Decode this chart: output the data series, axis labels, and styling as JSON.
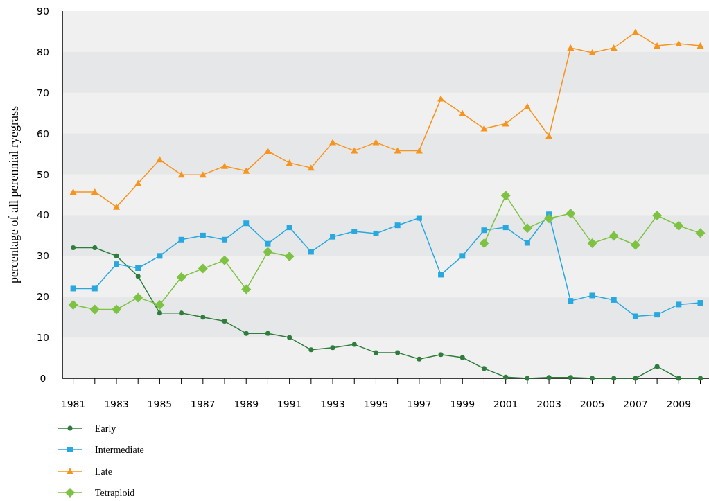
{
  "chart_data": {
    "type": "line",
    "ylabel": "percentage of all perennial ryegrass",
    "x": [
      1981,
      1982,
      1983,
      1984,
      1985,
      1986,
      1987,
      1988,
      1989,
      1990,
      1991,
      1992,
      1993,
      1994,
      1995,
      1996,
      1997,
      1998,
      1999,
      2000,
      2001,
      2002,
      2003,
      2004,
      2005,
      2006,
      2007,
      2008,
      2009,
      2010
    ],
    "series": [
      {
        "name": "Early",
        "color": "#2e7d3c",
        "marker": "circle",
        "values": [
          32,
          32,
          30,
          25,
          16,
          16,
          15,
          14,
          11,
          11,
          10,
          7,
          7.5,
          8.3,
          6.3,
          6.3,
          4.7,
          5.8,
          5.1,
          2.4,
          0.3,
          0,
          0.2,
          0.2,
          0,
          0,
          0,
          2.9,
          0,
          0
        ]
      },
      {
        "name": "Intermediate",
        "color": "#29a8e0",
        "marker": "square",
        "values": [
          22,
          22,
          28,
          27,
          30,
          34,
          35,
          34,
          38,
          33,
          37,
          31,
          34.7,
          36,
          35.5,
          37.5,
          39.3,
          25.4,
          30,
          36.3,
          37,
          33.2,
          40.2,
          19,
          20.3,
          19.2,
          15.2,
          15.6,
          18.1,
          18.5
        ]
      },
      {
        "name": "Late",
        "color": "#f7941d",
        "marker": "triangle",
        "values": [
          45.7,
          45.7,
          42,
          47.8,
          53.6,
          49.9,
          49.9,
          52,
          50.8,
          55.7,
          52.8,
          51.6,
          57.8,
          55.8,
          57.8,
          55.8,
          55.8,
          68.5,
          64.9,
          61.2,
          62.4,
          66.6,
          59.4,
          81,
          79.8,
          81,
          84.8,
          81.5,
          82,
          81.5
        ]
      },
      {
        "name": "Tetraploid",
        "color": "#7dc242",
        "marker": "diamond",
        "values": [
          18,
          16.9,
          16.9,
          19.8,
          18,
          24.8,
          26.9,
          28.9,
          21.8,
          31,
          29.9,
          null,
          null,
          null,
          null,
          null,
          null,
          null,
          null,
          33.1,
          44.8,
          36.8,
          39.2,
          40.4,
          33.1,
          34.9,
          32.7,
          39.9,
          37.4,
          35.6
        ]
      }
    ],
    "xlim": [
      1980.5,
      2010.4
    ],
    "xticks": [
      1981,
      {
        "value": 1982,
        "label": null
      },
      1983,
      {
        "value": 1984,
        "label": null
      },
      1985,
      {
        "value": 1986,
        "label": null
      },
      1987,
      {
        "value": 1988,
        "label": null
      },
      1989,
      {
        "value": 1990,
        "label": null
      },
      1991,
      {
        "value": 1992,
        "label": null
      },
      1993,
      {
        "value": 1994,
        "label": null
      },
      1995,
      {
        "value": 1996,
        "label": null
      },
      1997,
      {
        "value": 1998,
        "label": null
      },
      1999,
      {
        "value": 2000,
        "label": null
      },
      2001,
      {
        "value": 2002,
        "label": null
      },
      2003,
      {
        "value": 2004,
        "label": null
      },
      2005,
      {
        "value": 2006,
        "label": null
      },
      2007,
      {
        "value": 2008,
        "label": null
      },
      2009,
      {
        "value": 2010,
        "label": null
      }
    ],
    "ylim": [
      0,
      90
    ],
    "yticks": [
      0,
      10,
      20,
      30,
      40,
      50,
      60,
      70,
      80,
      90
    ],
    "bands": [
      {
        "axis": "y",
        "from": 10,
        "to": 20,
        "color": "#e6e7e8"
      },
      {
        "axis": "y",
        "from": 30,
        "to": 40,
        "color": "#e6e7e8"
      },
      {
        "axis": "y",
        "from": 50,
        "to": 60,
        "color": "#e6e7e8"
      },
      {
        "axis": "y",
        "from": 70,
        "to": 80,
        "color": "#e6e7e8"
      }
    ],
    "legend": "bottom",
    "line_style": "solid"
  }
}
